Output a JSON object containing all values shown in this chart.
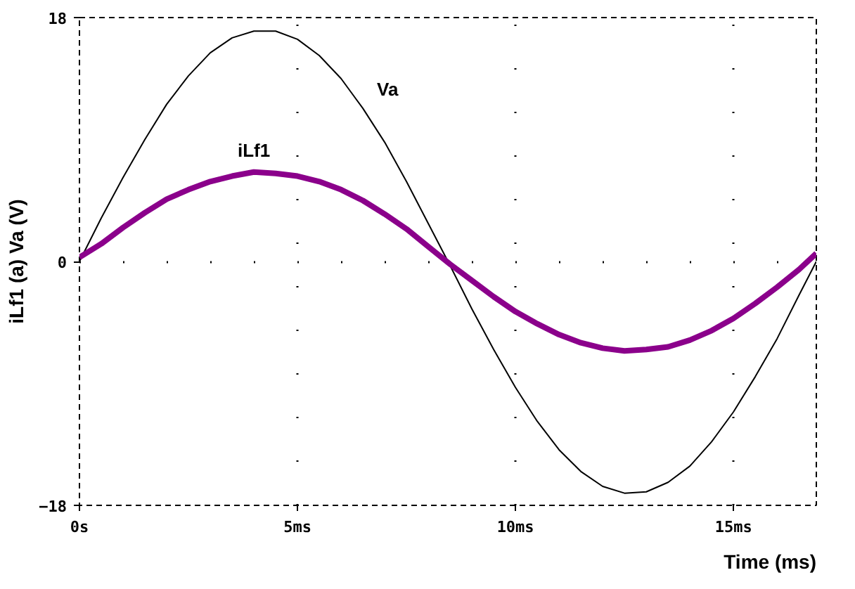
{
  "chart_data": {
    "type": "line",
    "xlabel": "Time (ms)",
    "ylabel": "iLf1 (a) Va (V)",
    "x": [
      0,
      0.5,
      1,
      1.5,
      2,
      2.5,
      3,
      3.5,
      4,
      4.5,
      5,
      5.5,
      6,
      6.5,
      7,
      7.5,
      8,
      8.5,
      9,
      9.5,
      10,
      10.5,
      11,
      11.5,
      12,
      12.5,
      13,
      13.5,
      14,
      14.5,
      15,
      15.5,
      16,
      16.5,
      16.9
    ],
    "series": [
      {
        "name": "Va",
        "color": "#000000",
        "values": [
          0,
          3.2,
          6.2,
          9.0,
          11.6,
          13.7,
          15.4,
          16.5,
          17.0,
          17.0,
          16.4,
          15.2,
          13.5,
          11.3,
          8.8,
          5.9,
          2.8,
          -0.3,
          -3.5,
          -6.5,
          -9.3,
          -11.8,
          -13.9,
          -15.5,
          -16.6,
          -17.1,
          -17.0,
          -16.3,
          -15.1,
          -13.3,
          -11.1,
          -8.5,
          -5.7,
          -2.5,
          0
        ]
      },
      {
        "name": "iLf1",
        "color": "#8b008b",
        "values": [
          0.3,
          1.3,
          2.5,
          3.6,
          4.6,
          5.3,
          5.9,
          6.3,
          6.6,
          6.5,
          6.3,
          5.9,
          5.3,
          4.5,
          3.5,
          2.4,
          1.1,
          -0.2,
          -1.4,
          -2.6,
          -3.7,
          -4.6,
          -5.4,
          -6.0,
          -6.4,
          -6.6,
          -6.5,
          -6.3,
          -5.8,
          -5.1,
          -4.2,
          -3.1,
          -1.9,
          -0.6,
          0.6
        ]
      }
    ],
    "xlim": [
      0,
      16.9
    ],
    "ylim": [
      -18,
      18
    ],
    "xticks": [
      {
        "value": 0,
        "label": "0s"
      },
      {
        "value": 5,
        "label": "5ms"
      },
      {
        "value": 10,
        "label": "10ms"
      },
      {
        "value": 15,
        "label": "15ms"
      }
    ],
    "yticks": [
      -18,
      0,
      18
    ],
    "grid": true,
    "marker": "none",
    "line_style": "solid"
  }
}
